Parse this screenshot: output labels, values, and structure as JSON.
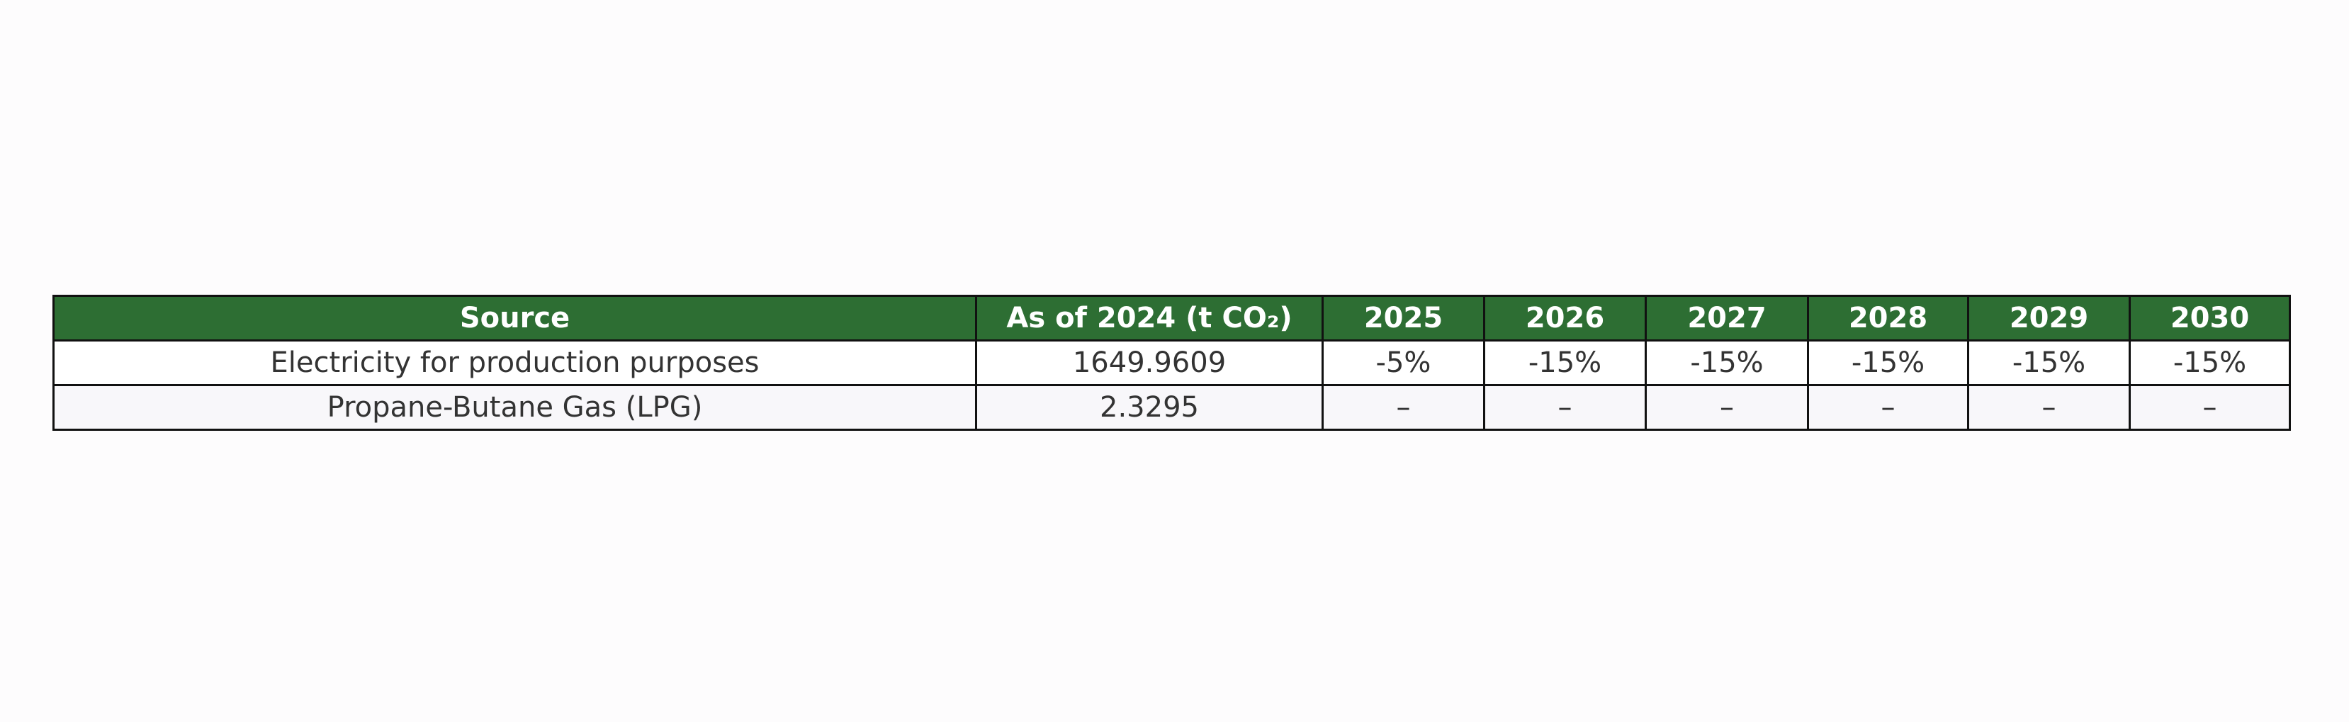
{
  "table": {
    "header": [
      "Source",
      "As of 2024 (t CO₂)",
      "2025",
      "2026",
      "2027",
      "2028",
      "2029",
      "2030"
    ],
    "rows": [
      [
        "Electricity for production purposes",
        "1649.9609",
        "-5%",
        "-15%",
        "-15%",
        "-15%",
        "-15%",
        "-15%"
      ],
      [
        "Propane-Butane Gas (LPG)",
        "2.3295",
        "–",
        "–",
        "–",
        "–",
        "–",
        "–"
      ]
    ]
  }
}
